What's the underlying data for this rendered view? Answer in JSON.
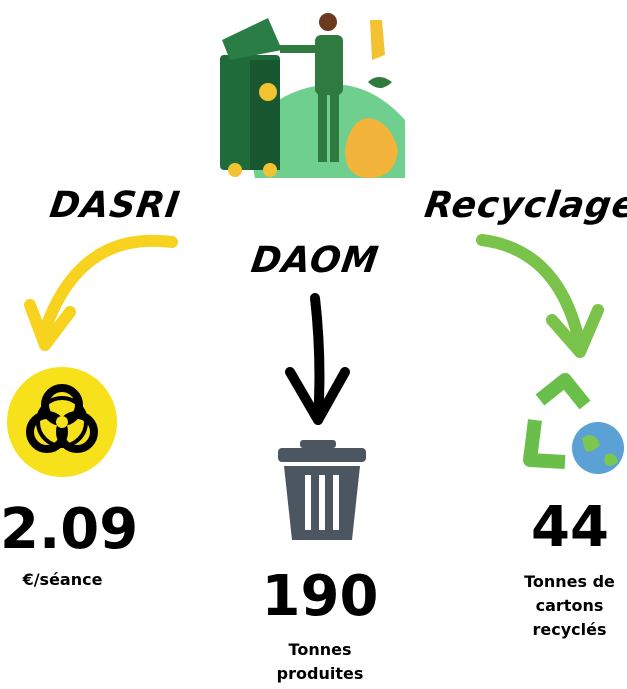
{
  "labels": {
    "left": "DASRI",
    "center": "DAOM",
    "right": "Recyclage"
  },
  "stats": [
    {
      "value": "2.09",
      "caption": "€/séance"
    },
    {
      "value": "190",
      "caption": "Tonnes produites"
    },
    {
      "value": "44",
      "caption": "Tonnes de cartons recyclés"
    }
  ]
}
